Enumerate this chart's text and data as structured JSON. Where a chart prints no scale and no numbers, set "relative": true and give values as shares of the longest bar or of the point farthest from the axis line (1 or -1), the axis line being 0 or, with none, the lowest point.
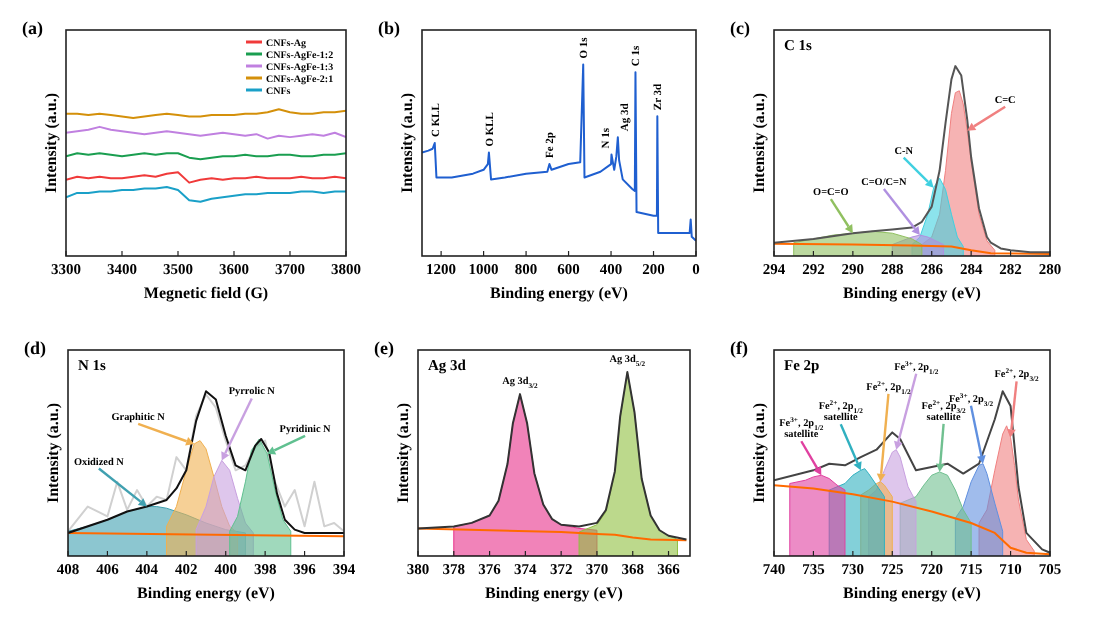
{
  "chart_data": [
    {
      "type": "line",
      "title": "(a)",
      "xlabel": "Megnetic field (G)",
      "ylabel": "Intensity (a.u.)",
      "relative": true,
      "legend": "top right",
      "xlim": [
        3300,
        3800
      ],
      "xticks": [
        3300,
        3400,
        3500,
        3600,
        3700,
        3800
      ],
      "x": [
        3300,
        3320,
        3340,
        3360,
        3380,
        3400,
        3420,
        3440,
        3460,
        3480,
        3500,
        3520,
        3540,
        3560,
        3580,
        3600,
        3620,
        3640,
        3660,
        3680,
        3700,
        3720,
        3740,
        3760,
        3780,
        3800
      ],
      "series": [
        {
          "name": "CNFs-Ag",
          "color": "#f03a3a",
          "values": [
            0.52,
            0.54,
            0.53,
            0.54,
            0.53,
            0.53,
            0.54,
            0.55,
            0.54,
            0.56,
            0.57,
            0.5,
            0.52,
            0.53,
            0.52,
            0.53,
            0.53,
            0.54,
            0.53,
            0.53,
            0.53,
            0.54,
            0.53,
            0.53,
            0.54,
            0.53
          ]
        },
        {
          "name": "CNFs-AgFe-1:2",
          "color": "#1a9e50",
          "values": [
            0.68,
            0.7,
            0.69,
            0.7,
            0.69,
            0.68,
            0.69,
            0.7,
            0.69,
            0.7,
            0.7,
            0.67,
            0.66,
            0.67,
            0.68,
            0.68,
            0.69,
            0.68,
            0.68,
            0.69,
            0.69,
            0.68,
            0.68,
            0.69,
            0.69,
            0.7
          ]
        },
        {
          "name": "CNFs-AgFe-1:3",
          "color": "#c080e0",
          "values": [
            0.84,
            0.85,
            0.86,
            0.88,
            0.86,
            0.85,
            0.84,
            0.83,
            0.84,
            0.85,
            0.84,
            0.83,
            0.82,
            0.83,
            0.84,
            0.83,
            0.82,
            0.83,
            0.8,
            0.82,
            0.81,
            0.82,
            0.83,
            0.82,
            0.84,
            0.81
          ]
        },
        {
          "name": "CNFs-AgFe-2:1",
          "color": "#d4900a",
          "values": [
            0.97,
            0.97,
            0.96,
            0.97,
            0.96,
            0.95,
            0.94,
            0.95,
            0.96,
            0.97,
            0.96,
            0.95,
            0.95,
            0.96,
            0.96,
            0.96,
            0.97,
            0.97,
            0.98,
            1.0,
            0.98,
            0.97,
            0.97,
            0.98,
            0.98,
            0.99
          ]
        },
        {
          "name": "CNFs",
          "color": "#1aa0c8",
          "values": [
            0.4,
            0.43,
            0.43,
            0.44,
            0.44,
            0.45,
            0.45,
            0.46,
            0.46,
            0.47,
            0.45,
            0.38,
            0.37,
            0.39,
            0.4,
            0.41,
            0.42,
            0.42,
            0.43,
            0.43,
            0.43,
            0.44,
            0.44,
            0.43,
            0.44,
            0.44
          ]
        }
      ]
    },
    {
      "type": "line",
      "title": "(b)",
      "xlabel": "Binding energy (eV)",
      "ylabel": "Intensity (a.u.)",
      "relative": true,
      "xlim": [
        1290,
        0
      ],
      "xticks": [
        1200,
        1000,
        800,
        600,
        400,
        200,
        0
      ],
      "x": [
        1290,
        1260,
        1240,
        1230,
        1222,
        1150,
        1050,
        1000,
        980,
        975,
        965,
        900,
        800,
        700,
        690,
        680,
        600,
        545,
        531,
        525,
        450,
        400,
        398,
        385,
        375,
        368,
        362,
        345,
        300,
        288,
        285,
        280,
        200,
        184,
        182,
        178,
        30,
        25,
        20,
        0
      ],
      "series": [
        {
          "color": "#1f5fd0",
          "values": [
            0.54,
            0.55,
            0.56,
            0.59,
            0.41,
            0.41,
            0.43,
            0.45,
            0.48,
            0.54,
            0.4,
            0.41,
            0.43,
            0.44,
            0.48,
            0.45,
            0.48,
            0.49,
            1.0,
            0.41,
            0.44,
            0.48,
            0.53,
            0.45,
            0.52,
            0.62,
            0.5,
            0.4,
            0.35,
            0.34,
            0.96,
            0.23,
            0.21,
            0.21,
            0.73,
            0.12,
            0.12,
            0.19,
            0.1,
            0.08
          ]
        }
      ],
      "annotations": [
        {
          "text": "C KLL",
          "x": 1230,
          "y": 0.59
        },
        {
          "text": "O KLL",
          "x": 975,
          "y": 0.54
        },
        {
          "text": "Fe 2p",
          "x": 690,
          "y": 0.48
        },
        {
          "text": "O 1s",
          "x": 531,
          "y": 1.0
        },
        {
          "text": "N 1s",
          "x": 398,
          "y": 0.53
        },
        {
          "text": "Ag 3d",
          "x": 368,
          "y": 0.62
        },
        {
          "text": "C 1s",
          "x": 285,
          "y": 0.96
        },
        {
          "text": "Zr 3d",
          "x": 182,
          "y": 0.73
        }
      ]
    },
    {
      "type": "line",
      "title": "(c)",
      "subtitle": "C 1s",
      "xlabel": "Binding energy (eV)",
      "ylabel": "Intensity (a.u.)",
      "relative": true,
      "xlim": [
        294,
        280
      ],
      "xticks": [
        294,
        292,
        290,
        288,
        286,
        284,
        282,
        280
      ],
      "series": [
        {
          "type": "area",
          "color": "#f08080",
          "x": [
            286.5,
            286,
            285.6,
            285.3,
            285,
            284.8,
            284.6,
            284.4,
            284.2,
            284,
            283.6,
            283.2,
            282.8
          ],
          "values": [
            0.06,
            0.1,
            0.22,
            0.45,
            0.75,
            0.86,
            0.87,
            0.8,
            0.66,
            0.5,
            0.22,
            0.08,
            0.03
          ]
        },
        {
          "type": "area",
          "color": "#40d0e0",
          "x": [
            287,
            286.6,
            286.2,
            285.9,
            285.6,
            285.3,
            285,
            284.7,
            284.4
          ],
          "values": [
            0.06,
            0.1,
            0.22,
            0.36,
            0.41,
            0.35,
            0.22,
            0.1,
            0.05
          ]
        },
        {
          "type": "area",
          "color": "#b090e0",
          "x": [
            288,
            287.5,
            287,
            286.6,
            286.2,
            285.8,
            285.4
          ],
          "values": [
            0.06,
            0.08,
            0.1,
            0.11,
            0.1,
            0.08,
            0.06
          ]
        },
        {
          "type": "area",
          "color": "#90c060",
          "x": [
            293,
            292,
            291,
            290,
            289,
            288,
            287,
            286.5
          ],
          "values": [
            0.07,
            0.09,
            0.11,
            0.12,
            0.13,
            0.12,
            0.09,
            0.06
          ]
        },
        {
          "color": "#ff6a00",
          "x": [
            294,
            290,
            287,
            285,
            284,
            283,
            280
          ],
          "values": [
            0.065,
            0.06,
            0.055,
            0.05,
            0.03,
            0.015,
            0.01
          ]
        },
        {
          "color": "#555555",
          "x": [
            294,
            292,
            290,
            289,
            288,
            287,
            286.5,
            286,
            285.6,
            285.3,
            285,
            284.8,
            284.5,
            284.2,
            284,
            283.6,
            283.2,
            283,
            282.5,
            282,
            281,
            280
          ],
          "values": [
            0.07,
            0.09,
            0.12,
            0.13,
            0.14,
            0.15,
            0.18,
            0.26,
            0.45,
            0.7,
            0.93,
            1.0,
            0.95,
            0.72,
            0.52,
            0.25,
            0.1,
            0.07,
            0.04,
            0.03,
            0.02,
            0.02
          ]
        }
      ],
      "annotations": [
        {
          "text": "C=C",
          "x": 284.2,
          "y": 0.66
        },
        {
          "text": "C-N",
          "x": 285.9,
          "y": 0.36
        },
        {
          "text": "C=O/C=N",
          "x": 286.6,
          "y": 0.11
        },
        {
          "text": "O=C=O",
          "x": 290,
          "y": 0.12
        }
      ]
    },
    {
      "type": "line",
      "title": "(d)",
      "subtitle": "N 1s",
      "xlabel": "Binding energy (eV)",
      "ylabel": "Intensity (a.u.)",
      "relative": true,
      "xlim": [
        408,
        394
      ],
      "xticks": [
        408,
        406,
        404,
        402,
        400,
        398,
        396,
        394
      ],
      "series": [
        {
          "color": "#d0d0d0",
          "x": [
            408,
            407,
            406,
            405.5,
            405,
            404.5,
            404,
            403.5,
            403,
            402.5,
            402,
            401.5,
            401,
            400.5,
            400,
            399.5,
            399,
            398.5,
            398,
            397.5,
            397,
            396.5,
            396,
            395.5,
            395,
            394.5,
            394
          ],
          "values": [
            0.15,
            0.3,
            0.24,
            0.45,
            0.28,
            0.4,
            0.3,
            0.36,
            0.34,
            0.6,
            0.52,
            0.85,
            0.98,
            0.9,
            0.7,
            0.52,
            0.55,
            0.66,
            0.7,
            0.45,
            0.3,
            0.4,
            0.18,
            0.45,
            0.18,
            0.2,
            0.15
          ]
        },
        {
          "type": "area",
          "color": "#40a0b0",
          "x": [
            408,
            407,
            406,
            405,
            404,
            403.5,
            403,
            402,
            401,
            400,
            399
          ],
          "values": [
            0.15,
            0.18,
            0.22,
            0.27,
            0.3,
            0.3,
            0.29,
            0.25,
            0.2,
            0.16,
            0.14
          ]
        },
        {
          "type": "area",
          "color": "#f0b050",
          "x": [
            403,
            402.5,
            402,
            401.6,
            401.3,
            401,
            400.6,
            400.2,
            399.8,
            399.4
          ],
          "values": [
            0.18,
            0.3,
            0.52,
            0.68,
            0.7,
            0.65,
            0.48,
            0.3,
            0.18,
            0.14
          ]
        },
        {
          "type": "area",
          "color": "#c8a0e0",
          "x": [
            401.5,
            401,
            400.6,
            400.2,
            399.8,
            399.4,
            399,
            398.6
          ],
          "values": [
            0.16,
            0.3,
            0.48,
            0.58,
            0.52,
            0.35,
            0.2,
            0.14
          ]
        },
        {
          "type": "area",
          "color": "#60c090",
          "x": [
            399.8,
            399.4,
            399,
            398.7,
            398.3,
            397.9,
            397.5,
            397.1,
            396.7
          ],
          "values": [
            0.15,
            0.24,
            0.45,
            0.64,
            0.71,
            0.62,
            0.4,
            0.22,
            0.15
          ]
        },
        {
          "color": "#ff6a00",
          "x": [
            408,
            394
          ],
          "values": [
            0.14,
            0.12
          ]
        },
        {
          "color": "#111111",
          "x": [
            408,
            406,
            405,
            404,
            403,
            402.5,
            402,
            401.5,
            401,
            400.5,
            400,
            399.5,
            399,
            398.5,
            398.2,
            397.8,
            397.4,
            397,
            396.5,
            396,
            394
          ],
          "values": [
            0.14,
            0.22,
            0.27,
            0.3,
            0.34,
            0.41,
            0.52,
            0.82,
            1.0,
            0.95,
            0.73,
            0.55,
            0.52,
            0.67,
            0.71,
            0.63,
            0.38,
            0.22,
            0.16,
            0.14,
            0.14
          ]
        }
      ],
      "annotations": [
        {
          "text": "Oxidized N",
          "x": 404,
          "y": 0.3
        },
        {
          "text": "Graphitic N",
          "x": 401.6,
          "y": 0.68
        },
        {
          "text": "Pyrrolic N",
          "x": 400.2,
          "y": 0.58
        },
        {
          "text": "Pyridinic N",
          "x": 397.9,
          "y": 0.62
        }
      ]
    },
    {
      "type": "line",
      "title": "(e)",
      "subtitle": "Ag 3d",
      "xlabel": "Binding energy (eV)",
      "ylabel": "Intensity (a.u.)",
      "relative": true,
      "xlim": [
        380,
        364.8
      ],
      "xticks": [
        380,
        378,
        376,
        374,
        372,
        370,
        368,
        366
      ],
      "series": [
        {
          "type": "area",
          "color": "#e8308a",
          "x": [
            378,
            377,
            376,
            375.5,
            375,
            374.7,
            374.3,
            373.9,
            373.5,
            373,
            372.5,
            372,
            371,
            370
          ],
          "values": [
            0.16,
            0.18,
            0.22,
            0.3,
            0.5,
            0.72,
            0.88,
            0.72,
            0.45,
            0.28,
            0.2,
            0.17,
            0.15,
            0.14
          ]
        },
        {
          "type": "area",
          "color": "#90c040",
          "x": [
            371,
            370,
            369.5,
            369,
            368.7,
            368.3,
            367.9,
            367.5,
            367,
            366.5,
            366,
            365.5
          ],
          "values": [
            0.13,
            0.17,
            0.24,
            0.45,
            0.75,
            1.0,
            0.78,
            0.42,
            0.22,
            0.14,
            0.11,
            0.09
          ]
        },
        {
          "color": "#ff6a00",
          "x": [
            380,
            376,
            372,
            370,
            369,
            368,
            367,
            365
          ],
          "values": [
            0.15,
            0.14,
            0.13,
            0.12,
            0.115,
            0.1,
            0.09,
            0.085
          ]
        },
        {
          "color": "#333333",
          "x": [
            380,
            378,
            377,
            376,
            375.5,
            375,
            374.7,
            374.3,
            373.9,
            373.5,
            373,
            372.5,
            372,
            371,
            370,
            369.5,
            369,
            368.7,
            368.3,
            367.9,
            367.5,
            367,
            366.5,
            366,
            365
          ],
          "values": [
            0.15,
            0.16,
            0.18,
            0.22,
            0.3,
            0.5,
            0.72,
            0.88,
            0.72,
            0.45,
            0.28,
            0.2,
            0.17,
            0.16,
            0.18,
            0.25,
            0.46,
            0.76,
            1.0,
            0.78,
            0.42,
            0.22,
            0.14,
            0.11,
            0.09
          ]
        }
      ],
      "annotations": [
        {
          "text": "Ag 3d$_{3/2}$",
          "x": 374.3,
          "y": 0.88
        },
        {
          "text": "Ag 3d$_{5/2}$",
          "x": 368.3,
          "y": 1.0
        }
      ]
    },
    {
      "type": "line",
      "title": "(f)",
      "subtitle": "Fe 2p",
      "xlabel": "Binding energy (eV)",
      "ylabel": "Intensity (a.u.)",
      "relative": true,
      "xlim": [
        740,
        705
      ],
      "xticks": [
        740,
        735,
        730,
        725,
        720,
        715,
        710,
        705
      ],
      "series": [
        {
          "type": "area",
          "color": "#f08080",
          "x": [
            714,
            713,
            712,
            711,
            710.5,
            710,
            709.5,
            709,
            708,
            707
          ],
          "values": [
            0.2,
            0.28,
            0.52,
            0.74,
            0.79,
            0.72,
            0.55,
            0.34,
            0.1,
            0.03
          ]
        },
        {
          "type": "area",
          "color": "#6090e0",
          "x": [
            717,
            716,
            715,
            714,
            713.5,
            713,
            712,
            711
          ],
          "values": [
            0.23,
            0.3,
            0.45,
            0.55,
            0.56,
            0.5,
            0.32,
            0.15
          ]
        },
        {
          "type": "area",
          "color": "#70c090",
          "x": [
            724,
            722,
            721,
            720,
            719,
            718,
            717,
            716,
            715
          ],
          "values": [
            0.32,
            0.36,
            0.43,
            0.49,
            0.51,
            0.49,
            0.4,
            0.28,
            0.2
          ]
        },
        {
          "type": "area",
          "color": "#c8a0e0",
          "x": [
            728,
            727,
            726,
            725,
            724.5,
            724,
            723,
            722
          ],
          "values": [
            0.36,
            0.4,
            0.52,
            0.63,
            0.645,
            0.6,
            0.42,
            0.33
          ]
        },
        {
          "type": "area",
          "color": "#f0b050",
          "x": [
            729,
            728,
            727,
            726.5,
            726,
            725
          ],
          "values": [
            0.37,
            0.4,
            0.44,
            0.45,
            0.43,
            0.36
          ]
        },
        {
          "type": "area",
          "color": "#30b0c0",
          "x": [
            733,
            731,
            730,
            729,
            728.5,
            728,
            727,
            726
          ],
          "values": [
            0.4,
            0.44,
            0.49,
            0.52,
            0.53,
            0.5,
            0.43,
            0.36
          ]
        },
        {
          "type": "area",
          "color": "#e040a0",
          "x": [
            738,
            736,
            735,
            734,
            733,
            732,
            731
          ],
          "values": [
            0.44,
            0.46,
            0.48,
            0.49,
            0.47,
            0.43,
            0.4
          ]
        },
        {
          "color": "#ff6a00",
          "x": [
            740,
            735,
            730,
            725,
            720,
            715,
            712,
            710,
            708,
            705
          ],
          "values": [
            0.43,
            0.41,
            0.375,
            0.33,
            0.27,
            0.2,
            0.14,
            0.05,
            0.02,
            0.01
          ]
        },
        {
          "color": "#444444",
          "x": [
            740,
            735,
            733,
            731,
            729,
            727,
            725,
            724,
            722,
            720,
            718,
            716,
            714,
            712,
            711,
            710,
            709,
            708,
            706,
            705
          ],
          "values": [
            0.46,
            0.52,
            0.56,
            0.55,
            0.6,
            0.645,
            0.75,
            0.71,
            0.52,
            0.54,
            0.56,
            0.5,
            0.56,
            0.83,
            1.0,
            0.91,
            0.42,
            0.14,
            0.04,
            0.02
          ]
        }
      ],
      "annotations": [
        {
          "text": "Fe$^{2+}$, 2p$_{3/2}$",
          "x": 710,
          "y": 0.72
        },
        {
          "text": "Fe$^{3+}$, 2p$_{3/2}$",
          "x": 713.5,
          "y": 0.56
        },
        {
          "text": "Fe$^{2+}$, 2p$_{3/2}$\nsatellite",
          "x": 719,
          "y": 0.51
        },
        {
          "text": "Fe$^{3+}$, 2p$_{1/2}$",
          "x": 724.5,
          "y": 0.645
        },
        {
          "text": "Fe$^{2+}$, 2p$_{1/2}$",
          "x": 726.5,
          "y": 0.45
        },
        {
          "text": "Fe$^{2+}$, 2p$_{1/2}$\nsatellite",
          "x": 729,
          "y": 0.52
        },
        {
          "text": "Fe$^{3+}$, 2p$_{1/2}$\nsatellite",
          "x": 734,
          "y": 0.49
        }
      ]
    }
  ]
}
